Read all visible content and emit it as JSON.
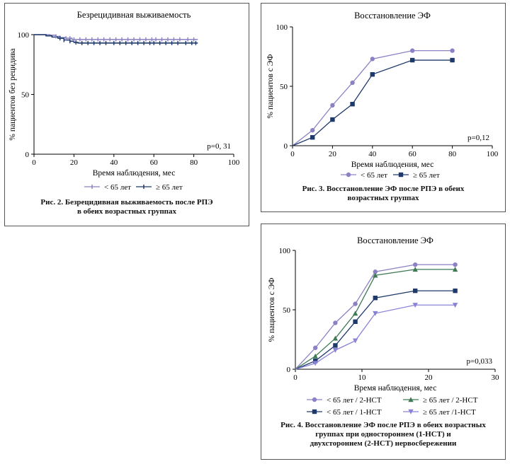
{
  "figure2": {
    "caption_lines": [
      "Рис. 2. Безрецидивная выживаемость после РПЭ",
      "в обеих возрастных группах"
    ],
    "chart_data": {
      "type": "line",
      "title": "Безрецидивная выживаемость",
      "xlabel": "Время наблюдения, мес",
      "ylabel": "% пациентов без рецидива",
      "xlim": [
        0,
        100
      ],
      "ylim": [
        0,
        100
      ],
      "xticks": [
        "0",
        "20",
        "40",
        "60",
        "80",
        "100"
      ],
      "yticks": [
        "0",
        "50",
        "100"
      ],
      "annotation": "p=0, 31",
      "series": [
        {
          "name": "< 65 лет",
          "color": "#8a82c4",
          "x": [
            0,
            5,
            8,
            11,
            13,
            16,
            19,
            82
          ],
          "y": [
            100,
            100,
            99.5,
            98.5,
            97.5,
            97,
            96,
            96
          ]
        },
        {
          "name": "≥ 65 лет",
          "color": "#1e3a6b",
          "x": [
            0,
            6,
            9,
            12,
            15,
            18,
            20,
            22,
            82
          ],
          "y": [
            100,
            99,
            98,
            97,
            95.5,
            94.5,
            93.5,
            93,
            93
          ]
        }
      ],
      "censor_marks": {
        "x1": [
          11,
          13,
          16,
          18,
          20,
          23,
          26,
          29,
          32,
          35,
          38,
          41,
          44,
          47,
          50,
          53,
          56,
          59,
          61,
          64,
          67,
          70,
          73,
          77,
          80
        ],
        "x2": [
          13,
          15,
          18,
          21,
          24,
          27,
          30,
          33,
          36,
          40,
          43,
          46,
          49,
          52,
          55,
          58,
          60,
          63,
          66,
          69,
          72,
          76,
          79,
          81
        ]
      }
    }
  },
  "figure3": {
    "caption_lines": [
      "Рис. 3. Восстановление ЭФ после РПЭ в обеих",
      "возрастных группах"
    ],
    "chart_data": {
      "type": "line",
      "title": "Восстановление ЭФ",
      "xlabel": "Время наблюдения, мес",
      "ylabel": "% пациентов с ЭФ",
      "xlim": [
        0,
        100
      ],
      "ylim": [
        0,
        100
      ],
      "xticks": [
        "0",
        "20",
        "40",
        "60",
        "80",
        "100"
      ],
      "yticks": [
        "0",
        "50",
        "100"
      ],
      "annotation": "p=0,12",
      "series": [
        {
          "name": "< 65 лет",
          "color": "#8a82c4",
          "marker": "circle",
          "x": [
            0,
            10,
            20,
            30,
            40,
            60,
            80
          ],
          "y": [
            0,
            13,
            34,
            53,
            73,
            80,
            80
          ]
        },
        {
          "name": "≥ 65 лет",
          "color": "#1e3a6b",
          "marker": "square",
          "x": [
            0,
            10,
            20,
            30,
            40,
            60,
            80
          ],
          "y": [
            0,
            7,
            22,
            35,
            60,
            72,
            72
          ]
        }
      ]
    }
  },
  "figure4": {
    "caption_lines": [
      "Рис. 4. Восстановление ЭФ после РПЭ в обеих возрастных",
      "группах при одностороннем (1-НСТ) и",
      "двухстороннем (2-НСТ) нервосбережении"
    ],
    "chart_data": {
      "type": "line",
      "title": "Восстановление ЭФ",
      "xlabel": "Время наблюдения, мес",
      "ylabel": "% пациентов с ЭФ",
      "xlim": [
        0,
        30
      ],
      "ylim": [
        0,
        100
      ],
      "xticks": [
        "0",
        "10",
        "20",
        "30"
      ],
      "yticks": [
        "0",
        "50",
        "100"
      ],
      "annotation": "p=0,033",
      "series": [
        {
          "name": "< 65 лет / 2-НСТ",
          "color": "#8a82c4",
          "marker": "circle",
          "x": [
            0,
            3,
            6,
            9,
            12,
            18,
            24
          ],
          "y": [
            0,
            18,
            39,
            55,
            82,
            88,
            88
          ]
        },
        {
          "name": "≥ 65 лет / 2-НСТ",
          "color": "#3f7a55",
          "marker": "triangle-up",
          "x": [
            0,
            3,
            6,
            9,
            12,
            18,
            24
          ],
          "y": [
            0,
            11,
            26,
            47,
            79,
            84,
            84
          ]
        },
        {
          "name": "< 65 лет / 1-НСТ",
          "color": "#1e3a6b",
          "marker": "square",
          "x": [
            0,
            3,
            6,
            9,
            12,
            18,
            24
          ],
          "y": [
            0,
            7,
            20,
            40,
            60,
            66,
            66
          ]
        },
        {
          "name": "≥ 65 лет /1-НСТ",
          "color": "#8a82d6",
          "marker": "triangle-down",
          "x": [
            0,
            3,
            6,
            9,
            12,
            18,
            24
          ],
          "y": [
            0,
            5,
            16,
            24,
            47,
            54,
            54
          ]
        }
      ]
    }
  }
}
